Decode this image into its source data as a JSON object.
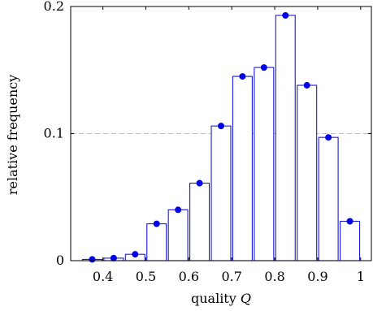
{
  "chart_data": {
    "type": "bar",
    "xlabel": "quality",
    "xlabel_var": "Q",
    "ylabel": "relative frequency",
    "xlim": [
      0.325,
      1.025
    ],
    "ylim": [
      0,
      0.2
    ],
    "bin_width": 0.05,
    "x": [
      0.375,
      0.425,
      0.475,
      0.525,
      0.575,
      0.625,
      0.675,
      0.725,
      0.775,
      0.825,
      0.875,
      0.925,
      0.975
    ],
    "values": [
      0.001,
      0.002,
      0.005,
      0.029,
      0.04,
      0.061,
      0.106,
      0.145,
      0.152,
      0.193,
      0.138,
      0.097,
      0.031
    ],
    "xticks": [
      0.4,
      0.5,
      0.6,
      0.7,
      0.8,
      0.9,
      1
    ],
    "xtick_labels": [
      "0.4",
      "0.5",
      "0.6",
      "0.7",
      "0.8",
      "0.9",
      "1"
    ],
    "yticks": [
      0,
      0.1,
      0.2
    ],
    "ytick_labels": [
      "0",
      "0.1",
      "0.2"
    ],
    "reference_line_y": 0.1,
    "colors": {
      "bar_edge": "#1a1ad6",
      "point": "#0000e6",
      "reference_line": "#bdbdbd"
    }
  }
}
